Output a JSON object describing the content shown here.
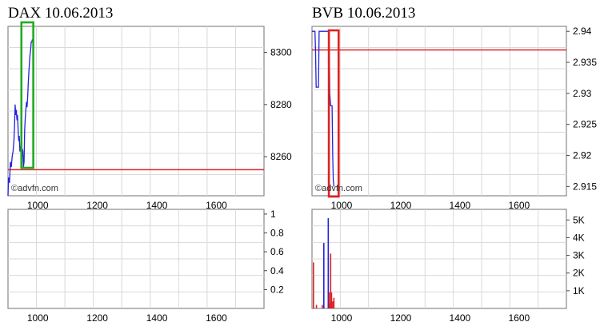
{
  "panels": [
    {
      "title": "DAX 10.06.2013",
      "watermark": "©advfn.com",
      "colors": {
        "line": "#2222dd",
        "ref": "#dd2222",
        "highlight": "#22aa22"
      },
      "price": {
        "type": "line",
        "x_ticks": [
          1000,
          1200,
          1400,
          1600
        ],
        "y_ticks": [
          8260,
          8280,
          8300
        ],
        "xlim": [
          900,
          1760
        ],
        "ylim": [
          8245,
          8310
        ],
        "ref_value": 8255,
        "series": [
          {
            "values": [
              [
                900,
                8245
              ],
              [
                902,
                8252
              ],
              [
                905,
                8250
              ],
              [
                908,
                8258
              ],
              [
                911,
                8256
              ],
              [
                914,
                8260
              ],
              [
                917,
                8262
              ],
              [
                920,
                8266
              ],
              [
                922,
                8272
              ],
              [
                924,
                8280
              ],
              [
                926,
                8276
              ],
              [
                928,
                8278
              ],
              [
                930,
                8274
              ],
              [
                932,
                8276
              ],
              [
                934,
                8270
              ],
              [
                936,
                8266
              ],
              [
                938,
                8268
              ],
              [
                940,
                8262
              ],
              [
                942,
                8264
              ],
              [
                944,
                8260
              ],
              [
                946,
                8258
              ],
              [
                948,
                8263
              ],
              [
                950,
                8262
              ],
              [
                952,
                8256
              ],
              [
                954,
                8258
              ],
              [
                956,
                8270
              ],
              [
                958,
                8275
              ],
              [
                960,
                8278
              ],
              [
                962,
                8281
              ],
              [
                964,
                8279
              ],
              [
                966,
                8283
              ],
              [
                968,
                8288
              ],
              [
                970,
                8292
              ],
              [
                972,
                8296
              ],
              [
                974,
                8299
              ],
              [
                976,
                8301
              ],
              [
                978,
                8304
              ],
              [
                980,
                8304
              ],
              [
                982,
                8305
              ]
            ]
          }
        ],
        "highlight_x": [
          945,
          985
        ]
      },
      "volume": {
        "type": "bar",
        "y_ticks": [
          "0.2",
          "0.4",
          "0.6",
          "0.8",
          "1"
        ],
        "ylim": [
          0,
          1.05
        ],
        "x_ticks": [
          1000,
          1200,
          1400,
          1600
        ],
        "bars": []
      }
    },
    {
      "title": "BVB 10.06.2013",
      "watermark": "©advfn.com",
      "colors": {
        "line": "#2222dd",
        "ref": "#dd2222",
        "highlight": "#dd2222"
      },
      "price": {
        "type": "line",
        "x_ticks": [
          1000,
          1200,
          1400,
          1600
        ],
        "y_ticks": [
          "2.915",
          "2.92",
          "2.925",
          "2.93",
          "2.935",
          "2.94"
        ],
        "xlim": [
          900,
          1760
        ],
        "ylim": [
          2.9135,
          2.9408
        ],
        "ref_value": 2.937,
        "series": [
          {
            "values": [
              [
                900,
                2.94
              ],
              [
                903,
                2.94
              ],
              [
                906,
                2.94
              ],
              [
                908,
                2.94
              ],
              [
                910,
                2.94
              ],
              [
                912,
                2.937
              ],
              [
                914,
                2.931
              ],
              [
                918,
                2.931
              ],
              [
                922,
                2.931
              ],
              [
                924,
                2.94
              ],
              [
                928,
                2.94
              ],
              [
                932,
                2.94
              ],
              [
                936,
                2.94
              ],
              [
                940,
                2.94
              ],
              [
                945,
                2.94
              ],
              [
                950,
                2.94
              ],
              [
                955,
                2.94
              ],
              [
                958,
                2.94
              ],
              [
                960,
                2.93
              ],
              [
                963,
                2.928
              ],
              [
                966,
                2.928
              ],
              [
                968,
                2.928
              ],
              [
                970,
                2.92
              ],
              [
                972,
                2.916
              ],
              [
                974,
                2.915
              ]
            ]
          }
        ],
        "highlight_x": [
          957,
          990
        ]
      },
      "volume": {
        "type": "bar",
        "y_ticks": [
          "1K",
          "2K",
          "3K",
          "4K",
          "5K"
        ],
        "ylim": [
          0,
          5600
        ],
        "x_ticks": [
          1000,
          1200,
          1400,
          1600
        ],
        "bars": [
          {
            "x": 905,
            "v": 2600,
            "color": "#dd2222"
          },
          {
            "x": 915,
            "v": 200,
            "color": "#dd2222"
          },
          {
            "x": 935,
            "v": 200,
            "color": "#dd2222"
          },
          {
            "x": 940,
            "v": 3700,
            "color": "#2222dd"
          },
          {
            "x": 955,
            "v": 5100,
            "color": "#2222dd"
          },
          {
            "x": 958,
            "v": 900,
            "color": "#dd2222"
          },
          {
            "x": 961,
            "v": 300,
            "color": "#dd2222"
          },
          {
            "x": 963,
            "v": 3100,
            "color": "#dd2222"
          },
          {
            "x": 966,
            "v": 900,
            "color": "#dd2222"
          },
          {
            "x": 970,
            "v": 400,
            "color": "#dd2222"
          },
          {
            "x": 974,
            "v": 600,
            "color": "#dd2222"
          }
        ]
      }
    }
  ]
}
